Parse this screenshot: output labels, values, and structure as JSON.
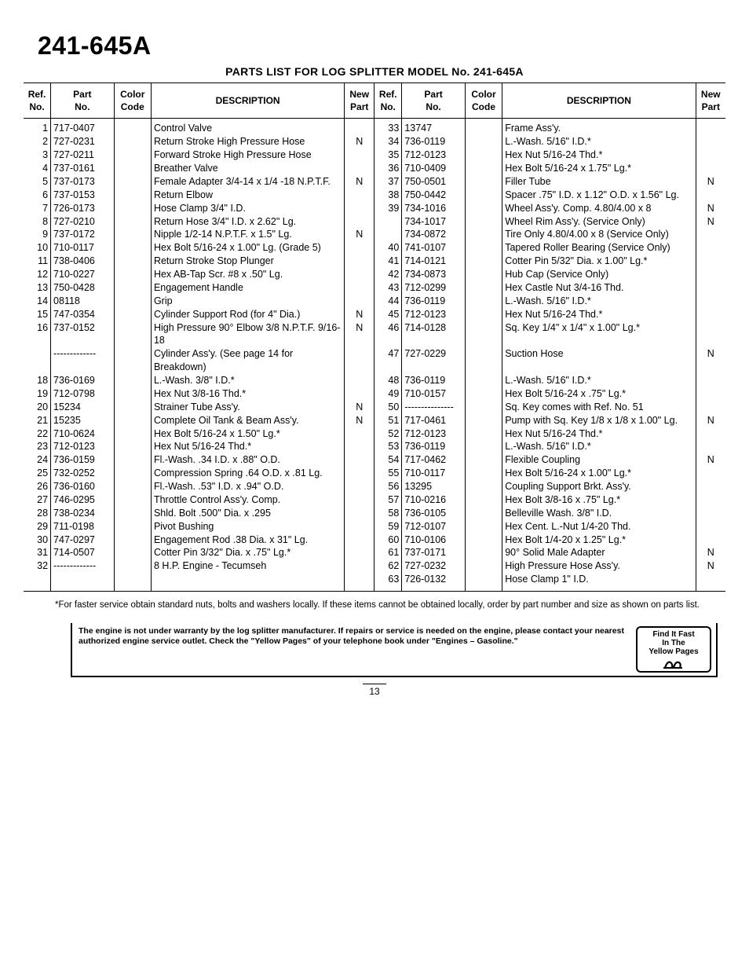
{
  "heading": "241-645A",
  "subtitle": "PARTS LIST FOR LOG SPLITTER MODEL No. 241-645A",
  "columns": {
    "ref": "Ref.\nNo.",
    "part": "Part\nNo.",
    "color": "Color\nCode",
    "desc": "DESCRIPTION",
    "np": "New\nPart"
  },
  "left": [
    {
      "ref": "1",
      "part": "717-0407",
      "desc": "Control Valve",
      "np": ""
    },
    {
      "ref": "2",
      "part": "727-0231",
      "desc": "Return Stroke High Pressure Hose",
      "np": "N"
    },
    {
      "ref": "3",
      "part": "727-0211",
      "desc": "Forward Stroke High Pressure Hose",
      "np": ""
    },
    {
      "ref": "4",
      "part": "737-0161",
      "desc": "Breather Valve",
      "np": ""
    },
    {
      "ref": "5",
      "part": "737-0173",
      "desc": "Female Adapter 3/4-14 x 1/4 -18 N.P.T.F.",
      "np": "N"
    },
    {
      "ref": "6",
      "part": "737-0153",
      "desc": "Return Elbow",
      "np": ""
    },
    {
      "ref": "7",
      "part": "726-0173",
      "desc": "Hose Clamp 3/4\" I.D.",
      "np": ""
    },
    {
      "ref": "8",
      "part": "727-0210",
      "desc": "Return Hose 3/4\" I.D. x 2.62\" Lg.",
      "np": ""
    },
    {
      "ref": "9",
      "part": "737-0172",
      "desc": "Nipple 1/2-14 N.P.T.F. x 1.5\" Lg.",
      "np": "N"
    },
    {
      "ref": "10",
      "part": "710-0117",
      "desc": "Hex Bolt 5/16-24 x 1.00\" Lg. (Grade 5)",
      "np": ""
    },
    {
      "ref": "11",
      "part": "738-0406",
      "desc": "Return Stroke Stop Plunger",
      "np": ""
    },
    {
      "ref": "12",
      "part": "710-0227",
      "desc": "Hex AB-Tap Scr. #8 x .50\" Lg.",
      "np": ""
    },
    {
      "ref": "13",
      "part": "750-0428",
      "desc": "Engagement Handle",
      "np": ""
    },
    {
      "ref": "14",
      "part": "08118",
      "desc": "Grip",
      "np": ""
    },
    {
      "ref": "15",
      "part": "747-0354",
      "desc": "Cylinder Support Rod (for 4\" Dia.)",
      "np": "N"
    },
    {
      "ref": "16",
      "part": "737-0152",
      "desc": "High Pressure 90° Elbow 3/8 N.P.T.F. 9/16-18",
      "np": "N"
    },
    {
      "ref": "",
      "part": "-------------",
      "desc": "Cylinder Ass'y. (See page 14 for Breakdown)",
      "np": ""
    },
    {
      "ref": "18",
      "part": "736-0169",
      "desc": "L.-Wash. 3/8\" I.D.*",
      "np": ""
    },
    {
      "ref": "19",
      "part": "712-0798",
      "desc": "Hex Nut 3/8-16 Thd.*",
      "np": ""
    },
    {
      "ref": "20",
      "part": "15234",
      "desc": "Strainer Tube Ass'y.",
      "np": "N"
    },
    {
      "ref": "21",
      "part": "15235",
      "desc": "Complete Oil Tank & Beam Ass'y.",
      "np": "N"
    },
    {
      "ref": "22",
      "part": "710-0624",
      "desc": "Hex Bolt 5/16-24 x 1.50\" Lg.*",
      "np": ""
    },
    {
      "ref": "23",
      "part": "712-0123",
      "desc": "Hex Nut 5/16-24 Thd.*",
      "np": ""
    },
    {
      "ref": "24",
      "part": "736-0159",
      "desc": "Fl.-Wash. .34 I.D. x .88\" O.D.",
      "np": ""
    },
    {
      "ref": "25",
      "part": "732-0252",
      "desc": "Compression Spring .64 O.D. x .81 Lg.",
      "np": ""
    },
    {
      "ref": "26",
      "part": "736-0160",
      "desc": "Fl.-Wash. .53\" I.D. x .94\" O.D.",
      "np": ""
    },
    {
      "ref": "27",
      "part": "746-0295",
      "desc": "Throttle Control Ass'y. Comp.",
      "np": ""
    },
    {
      "ref": "28",
      "part": "738-0234",
      "desc": "Shld. Bolt .500\" Dia. x .295",
      "np": ""
    },
    {
      "ref": "29",
      "part": "711-0198",
      "desc": "Pivot Bushing",
      "np": ""
    },
    {
      "ref": "30",
      "part": "747-0297",
      "desc": "Engagement Rod .38 Dia. x 31\" Lg.",
      "np": ""
    },
    {
      "ref": "31",
      "part": "714-0507",
      "desc": "Cotter Pin 3/32\" Dia. x .75\" Lg.*",
      "np": ""
    },
    {
      "ref": "32",
      "part": "-------------",
      "desc": "8 H.P. Engine - Tecumseh",
      "np": ""
    }
  ],
  "right": [
    {
      "ref": "33",
      "part": "13747",
      "desc": "Frame Ass'y.",
      "np": ""
    },
    {
      "ref": "34",
      "part": "736-0119",
      "desc": "L.-Wash. 5/16\" I.D.*",
      "np": ""
    },
    {
      "ref": "35",
      "part": "712-0123",
      "desc": "Hex Nut 5/16-24 Thd.*",
      "np": ""
    },
    {
      "ref": "36",
      "part": "710-0409",
      "desc": "Hex Bolt 5/16-24 x 1.75\" Lg.*",
      "np": ""
    },
    {
      "ref": "37",
      "part": "750-0501",
      "desc": "Filler Tube",
      "np": "N"
    },
    {
      "ref": "38",
      "part": "750-0442",
      "desc": "Spacer .75\" I.D. x 1.12\" O.D. x 1.56\" Lg.",
      "np": ""
    },
    {
      "ref": "39",
      "part": "734-1016",
      "desc": "Wheel Ass'y. Comp. 4.80/4.00 x 8",
      "np": "N"
    },
    {
      "ref": "",
      "part": "734-1017",
      "desc": "Wheel Rim Ass'y. (Service Only)",
      "np": "N"
    },
    {
      "ref": "",
      "part": "734-0872",
      "desc": "Tire Only 4.80/4.00 x 8 (Service Only)",
      "np": ""
    },
    {
      "ref": "40",
      "part": "741-0107",
      "desc": "Tapered Roller Bearing (Service Only)",
      "np": ""
    },
    {
      "ref": "41",
      "part": "714-0121",
      "desc": "Cotter Pin 5/32\" Dia. x 1.00\" Lg.*",
      "np": ""
    },
    {
      "ref": "42",
      "part": "734-0873",
      "desc": "Hub Cap (Service Only)",
      "np": ""
    },
    {
      "ref": "43",
      "part": "712-0299",
      "desc": "Hex Castle Nut 3/4-16 Thd.",
      "np": ""
    },
    {
      "ref": "44",
      "part": "736-0119",
      "desc": "L.-Wash. 5/16\" I.D.*",
      "np": ""
    },
    {
      "ref": "45",
      "part": "712-0123",
      "desc": "Hex Nut 5/16-24 Thd.*",
      "np": ""
    },
    {
      "ref": "46",
      "part": "714-0128",
      "desc": "Sq. Key 1/4\" x 1/4\" x 1.00\" Lg.*",
      "np": ""
    },
    {
      "ref": "47",
      "part": "727-0229",
      "desc": "Suction Hose",
      "np": "N"
    },
    {
      "ref": "48",
      "part": "736-0119",
      "desc": "L.-Wash. 5/16\" I.D.*",
      "np": ""
    },
    {
      "ref": "49",
      "part": "710-0157",
      "desc": "Hex Bolt 5/16-24 x .75\" Lg.*",
      "np": ""
    },
    {
      "ref": "50",
      "part": "---------------",
      "desc": "Sq. Key comes with Ref. No. 51",
      "np": ""
    },
    {
      "ref": "51",
      "part": "717-0461",
      "desc": "Pump with Sq. Key 1/8 x 1/8 x 1.00\" Lg.",
      "np": "N"
    },
    {
      "ref": "52",
      "part": "712-0123",
      "desc": "Hex Nut 5/16-24 Thd.*",
      "np": ""
    },
    {
      "ref": "53",
      "part": "736-0119",
      "desc": "L.-Wash. 5/16\" I.D.*",
      "np": ""
    },
    {
      "ref": "54",
      "part": "717-0462",
      "desc": "Flexible Coupling",
      "np": "N"
    },
    {
      "ref": "55",
      "part": "710-0117",
      "desc": "Hex Bolt 5/16-24 x 1.00\" Lg.*",
      "np": ""
    },
    {
      "ref": "56",
      "part": "13295",
      "desc": "Coupling Support Brkt. Ass'y.",
      "np": ""
    },
    {
      "ref": "57",
      "part": "710-0216",
      "desc": "Hex Bolt 3/8-16 x .75\" Lg.*",
      "np": ""
    },
    {
      "ref": "58",
      "part": "736-0105",
      "desc": "Belleville Wash. 3/8\" I.D.",
      "np": ""
    },
    {
      "ref": "59",
      "part": "712-0107",
      "desc": "Hex Cent. L.-Nut 1/4-20 Thd.",
      "np": ""
    },
    {
      "ref": "60",
      "part": "710-0106",
      "desc": "Hex Bolt 1/4-20 x 1.25\" Lg.*",
      "np": ""
    },
    {
      "ref": "61",
      "part": "737-0171",
      "desc": "90° Solid Male Adapter",
      "np": "N"
    },
    {
      "ref": "62",
      "part": "727-0232",
      "desc": "High Pressure Hose Ass'y.",
      "np": "N"
    },
    {
      "ref": "63",
      "part": "726-0132",
      "desc": "Hose Clamp 1\" I.D.",
      "np": ""
    }
  ],
  "footnote": "*For faster service obtain standard nuts, bolts and washers locally. If these items cannot be obtained locally, order by part number and size as shown on parts list.",
  "warranty": "The engine is not under warranty by the log splitter manufacturer. If repairs or service is needed on the engine, please contact your nearest authorized engine service outlet. Check the \"Yellow Pages\" of your telephone book under \"Engines – Gasoline.\"",
  "yp_line1": "Find It Fast",
  "yp_line2": "In The",
  "yp_line3": "Yellow Pages",
  "page_number": "13"
}
